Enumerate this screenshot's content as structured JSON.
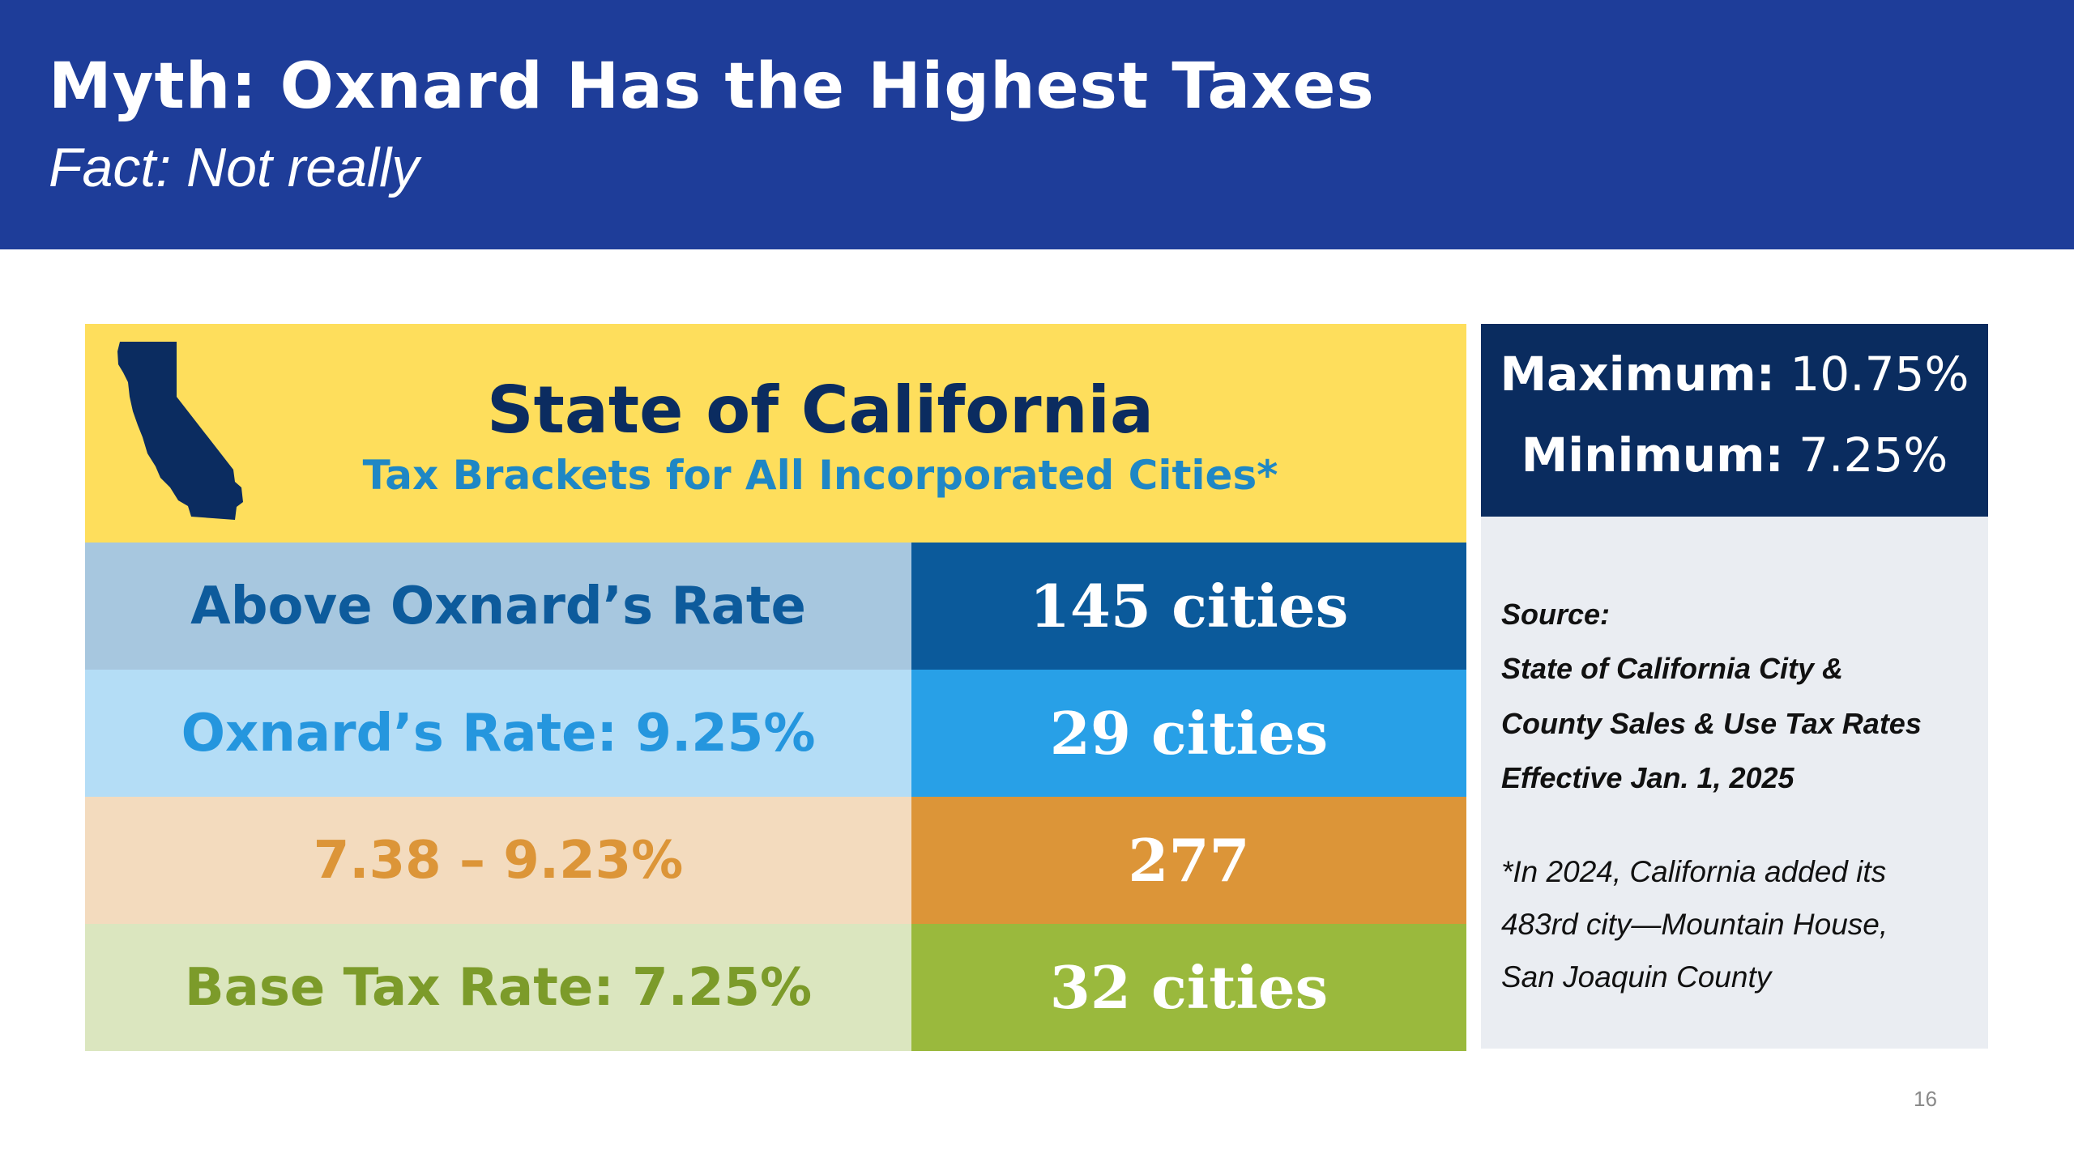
{
  "slide": {
    "title": "Myth:  Oxnard Has the Highest Taxes",
    "subtitle": "Fact: Not really",
    "page_number": "16"
  },
  "california": {
    "icon": "california-map-icon",
    "title": "State of California",
    "subtitle": "Tax Brackets for All Incorporated Cities*"
  },
  "brackets": [
    {
      "label": "Above Oxnard’s Rate",
      "count": "145 cities"
    },
    {
      "label": "Oxnard’s Rate: 9.25%",
      "count": "29 cities"
    },
    {
      "label": "7.38 – 9.23%",
      "count": "277"
    },
    {
      "label": "Base Tax Rate: 7.25%",
      "count": "32 cities"
    }
  ],
  "range": {
    "max_label": "Maximum:",
    "max_value": "10.75%",
    "min_label": "Minimum:",
    "min_value": "7.25%"
  },
  "source": {
    "lines": [
      "Source:",
      "State of California City &",
      "County Sales & Use Tax Rates",
      "Effective Jan. 1, 2025"
    ],
    "note_lines": [
      "*In 2024, California added its",
      "483rd city—Mountain House,",
      "San Joaquin County"
    ]
  },
  "colors": {
    "header_bg": "#1e3d99",
    "california_bg": "#fede5c",
    "above_dark": "#0b5a9b",
    "oxnard_blue": "#28a0e7",
    "mid_orange": "#dc9538",
    "base_green": "#9ab93d",
    "range_box": "#0a2c5f"
  }
}
